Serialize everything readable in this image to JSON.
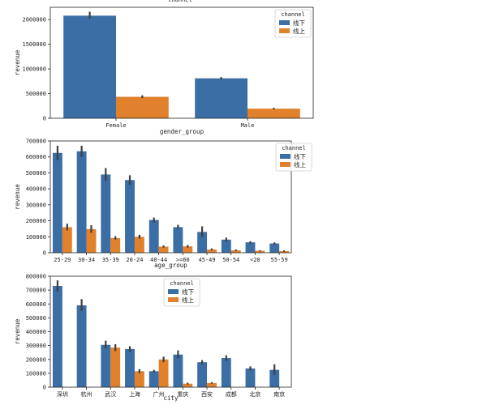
{
  "top_cut_label": "channel",
  "chart_data": [
    {
      "type": "bar",
      "xlabel": "gender_group",
      "ylabel": "revenue",
      "categories": [
        "Female",
        "Male"
      ],
      "ylim": [
        0,
        2250000
      ],
      "yticks": [
        0,
        500000,
        1000000,
        1500000,
        2000000
      ],
      "legend": {
        "title": "channel",
        "placement": "top-right"
      },
      "series": [
        {
          "name": "线下",
          "color": "#3a6ea5",
          "values": [
            2080000,
            810000
          ],
          "err": [
            [
              2020000,
              2160000
            ],
            [
              785000,
              835000
            ]
          ]
        },
        {
          "name": "线上",
          "color": "#e1812c",
          "values": [
            435000,
            195000
          ],
          "err": [
            [
              410000,
              465000
            ],
            [
              180000,
              212000
            ]
          ]
        }
      ]
    },
    {
      "type": "bar",
      "xlabel": "age_group",
      "ylabel": "revenue",
      "categories": [
        "25-29",
        "30-34",
        "35-39",
        "20-24",
        "40-44",
        ">=60",
        "45-49",
        "50-54",
        "<20",
        "55-59"
      ],
      "ylim": [
        0,
        700000
      ],
      "yticks": [
        0,
        100000,
        200000,
        300000,
        400000,
        500000,
        600000,
        700000
      ],
      "legend": {
        "title": "channel",
        "placement": "top-right"
      },
      "series": [
        {
          "name": "线下",
          "color": "#3a6ea5",
          "values": [
            625000,
            635000,
            490000,
            455000,
            205000,
            160000,
            130000,
            82000,
            65000,
            58000
          ],
          "err": [
            [
              580000,
              670000
            ],
            [
              600000,
              670000
            ],
            [
              450000,
              530000
            ],
            [
              425000,
              485000
            ],
            [
              190000,
              220000
            ],
            [
              150000,
              175000
            ],
            [
              100000,
              165000
            ],
            [
              70000,
              95000
            ],
            [
              58000,
              72000
            ],
            [
              50000,
              65000
            ]
          ]
        },
        {
          "name": "线上",
          "color": "#e1812c",
          "values": [
            160000,
            148000,
            92000,
            100000,
            38000,
            40000,
            20000,
            15000,
            12000,
            10000
          ],
          "err": [
            [
              140000,
              182000
            ],
            [
              125000,
              172000
            ],
            [
              82000,
              103000
            ],
            [
              88000,
              112000
            ],
            [
              32000,
              45000
            ],
            [
              32000,
              48000
            ],
            [
              14000,
              27000
            ],
            [
              10000,
              20000
            ],
            [
              8000,
              16000
            ],
            [
              6000,
              15000
            ]
          ]
        }
      ]
    },
    {
      "type": "bar",
      "xlabel": "city",
      "ylabel": "revenue",
      "categories": [
        "深圳",
        "杭州",
        "武汉",
        "上海",
        "广州",
        "重庆",
        "西安",
        "成都",
        "北京",
        "南京"
      ],
      "ylim": [
        0,
        800000
      ],
      "yticks": [
        0,
        100000,
        200000,
        300000,
        400000,
        500000,
        600000,
        700000,
        800000
      ],
      "legend": {
        "title": "channel",
        "placement": "upper center"
      },
      "series": [
        {
          "name": "线下",
          "color": "#3a6ea5",
          "values": [
            730000,
            590000,
            305000,
            275000,
            115000,
            235000,
            180000,
            210000,
            135000,
            125000
          ],
          "err": [
            [
              690000,
              770000
            ],
            [
              550000,
              635000
            ],
            [
              280000,
              335000
            ],
            [
              255000,
              295000
            ],
            [
              105000,
              125000
            ],
            [
              210000,
              265000
            ],
            [
              165000,
              195000
            ],
            [
              190000,
              230000
            ],
            [
              120000,
              150000
            ],
            [
              90000,
              165000
            ]
          ]
        },
        {
          "name": "线上",
          "color": "#e1812c",
          "values": [
            null,
            null,
            285000,
            115000,
            200000,
            25000,
            30000,
            null,
            null,
            null
          ],
          "err": [
            null,
            null,
            [
              260000,
              310000
            ],
            [
              100000,
              130000
            ],
            [
              180000,
              220000
            ],
            [
              20000,
              32000
            ],
            [
              25000,
              36000
            ],
            null,
            null,
            null
          ]
        }
      ]
    }
  ]
}
